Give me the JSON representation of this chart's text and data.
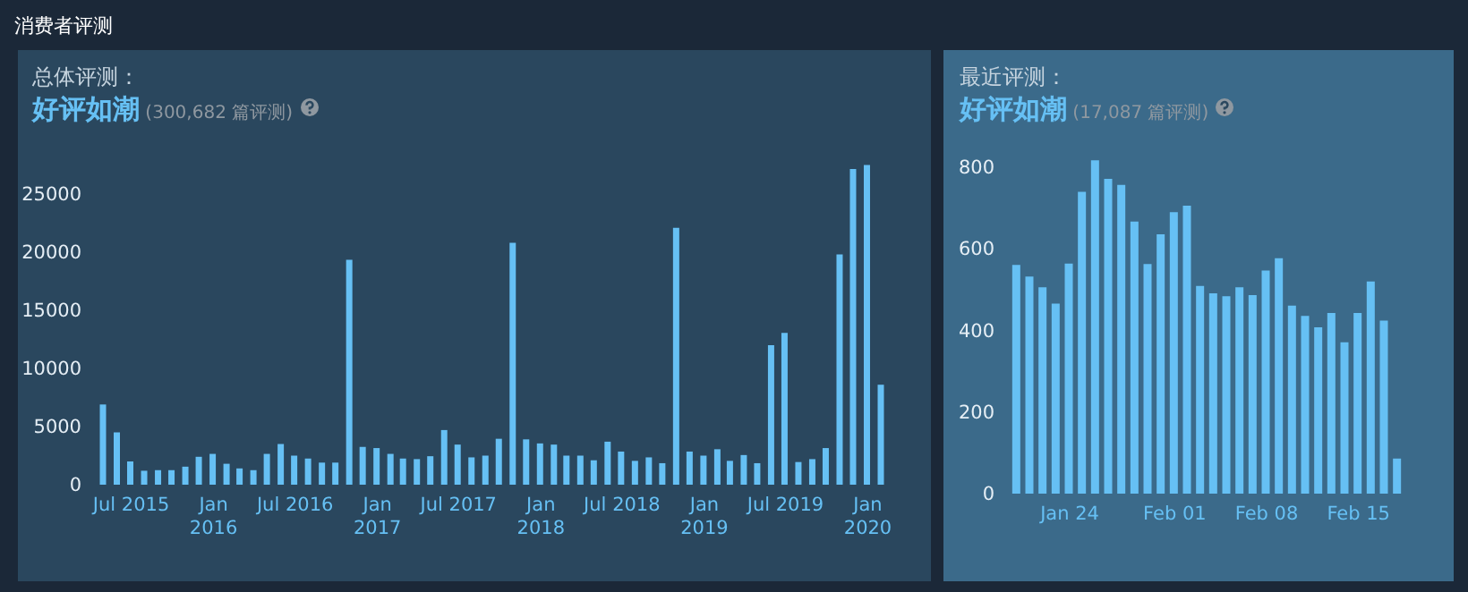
{
  "chart_data": [
    {
      "type": "bar",
      "title": "总体评测：",
      "subtitle": "好评如潮",
      "annotations": [
        "消费者评测",
        "(300,682 篇评测)"
      ],
      "color": "#66c0f4",
      "x": [
        "2015-05",
        "2015-06",
        "2015-07",
        "2015-08",
        "2015-09",
        "2015-10",
        "2015-11",
        "2015-12",
        "2016-01",
        "2016-02",
        "2016-03",
        "2016-04",
        "2016-05",
        "2016-06",
        "2016-07",
        "2016-08",
        "2016-09",
        "2016-10",
        "2016-11",
        "2016-12",
        "2017-01",
        "2017-02",
        "2017-03",
        "2017-04",
        "2017-05",
        "2017-06",
        "2017-07",
        "2017-08",
        "2017-09",
        "2017-10",
        "2017-11",
        "2017-12",
        "2018-01",
        "2018-02",
        "2018-03",
        "2018-04",
        "2018-05",
        "2018-06",
        "2018-07",
        "2018-08",
        "2018-09",
        "2018-10",
        "2018-11",
        "2018-12",
        "2019-01",
        "2019-02",
        "2019-03",
        "2019-04",
        "2019-05",
        "2019-06",
        "2019-07",
        "2019-08",
        "2019-09",
        "2019-10",
        "2019-11",
        "2019-12",
        "2020-01",
        "2020-02"
      ],
      "values": [
        6900,
        4500,
        2000,
        1200,
        1250,
        1250,
        1550,
        2400,
        2650,
        1800,
        1400,
        1250,
        2650,
        3500,
        2500,
        2250,
        1900,
        1900,
        19350,
        3250,
        3150,
        2650,
        2250,
        2200,
        2450,
        4700,
        3450,
        2350,
        2500,
        3950,
        20800,
        3900,
        3550,
        3450,
        2500,
        2500,
        2100,
        3700,
        2850,
        2050,
        2350,
        1850,
        22100,
        2850,
        2500,
        3050,
        2050,
        2550,
        1850,
        12000,
        13050,
        1950,
        2200,
        3150,
        19800,
        27150,
        27500,
        8600
      ],
      "xlim": [
        "2015-04-17",
        "2020-02-17"
      ],
      "ylim": [
        0,
        28000
      ],
      "yticks": [
        0,
        5000,
        10000,
        15000,
        20000,
        25000
      ],
      "xticks": [
        {
          "value": "2015-07",
          "label": "Jul 2015"
        },
        {
          "value": "2016-01",
          "label": "Jan\n2016"
        },
        {
          "value": "2016-07",
          "label": "Jul 2016"
        },
        {
          "value": "2017-01",
          "label": "Jan\n2017"
        },
        {
          "value": "2017-07",
          "label": "Jul 2017"
        },
        {
          "value": "2018-01",
          "label": "Jan\n2018"
        },
        {
          "value": "2018-07",
          "label": "Jul 2018"
        },
        {
          "value": "2019-01",
          "label": "Jan\n2019"
        },
        {
          "value": "2019-07",
          "label": "Jul 2019"
        },
        {
          "value": "2020-01",
          "label": "Jan\n2020"
        }
      ]
    },
    {
      "type": "bar",
      "title": "最近评测：",
      "subtitle": "好评如潮",
      "annotations": [
        "(17,087 篇评测)"
      ],
      "color": "#66c0f4",
      "x": [
        "--01-20",
        "--01-21",
        "--01-22",
        "--01-23",
        "--01-24",
        "--01-25",
        "--01-26",
        "--01-27",
        "--01-28",
        "--01-29",
        "--01-30",
        "--01-31",
        "--02-01",
        "--02-02",
        "--02-03",
        "--02-04",
        "--02-05",
        "--02-06",
        "--02-07",
        "--02-08",
        "--02-09",
        "--02-10",
        "--02-11",
        "--02-12",
        "--02-13",
        "--02-14",
        "--02-15",
        "--02-16",
        "--02-17",
        "--02-18"
      ],
      "values": [
        561,
        532,
        506,
        466,
        564,
        740,
        817,
        772,
        757,
        667,
        563,
        636,
        690,
        706,
        509,
        491,
        484,
        506,
        487,
        547,
        577,
        461,
        436,
        408,
        443,
        371,
        443,
        520,
        424,
        86
      ],
      "xlim": [
        "--01-19T12:00",
        "--02-18T12:00"
      ],
      "ylim": [
        0,
        820
      ],
      "yticks": [
        0,
        200,
        400,
        600,
        800
      ],
      "xticks": [
        {
          "value": "--01-24",
          "label": "Jan 24"
        },
        {
          "value": "--02-01",
          "label": "Feb 01"
        },
        {
          "value": "--02-08",
          "label": "Feb 08"
        },
        {
          "value": "--02-15",
          "label": "Feb 15"
        }
      ]
    }
  ]
}
